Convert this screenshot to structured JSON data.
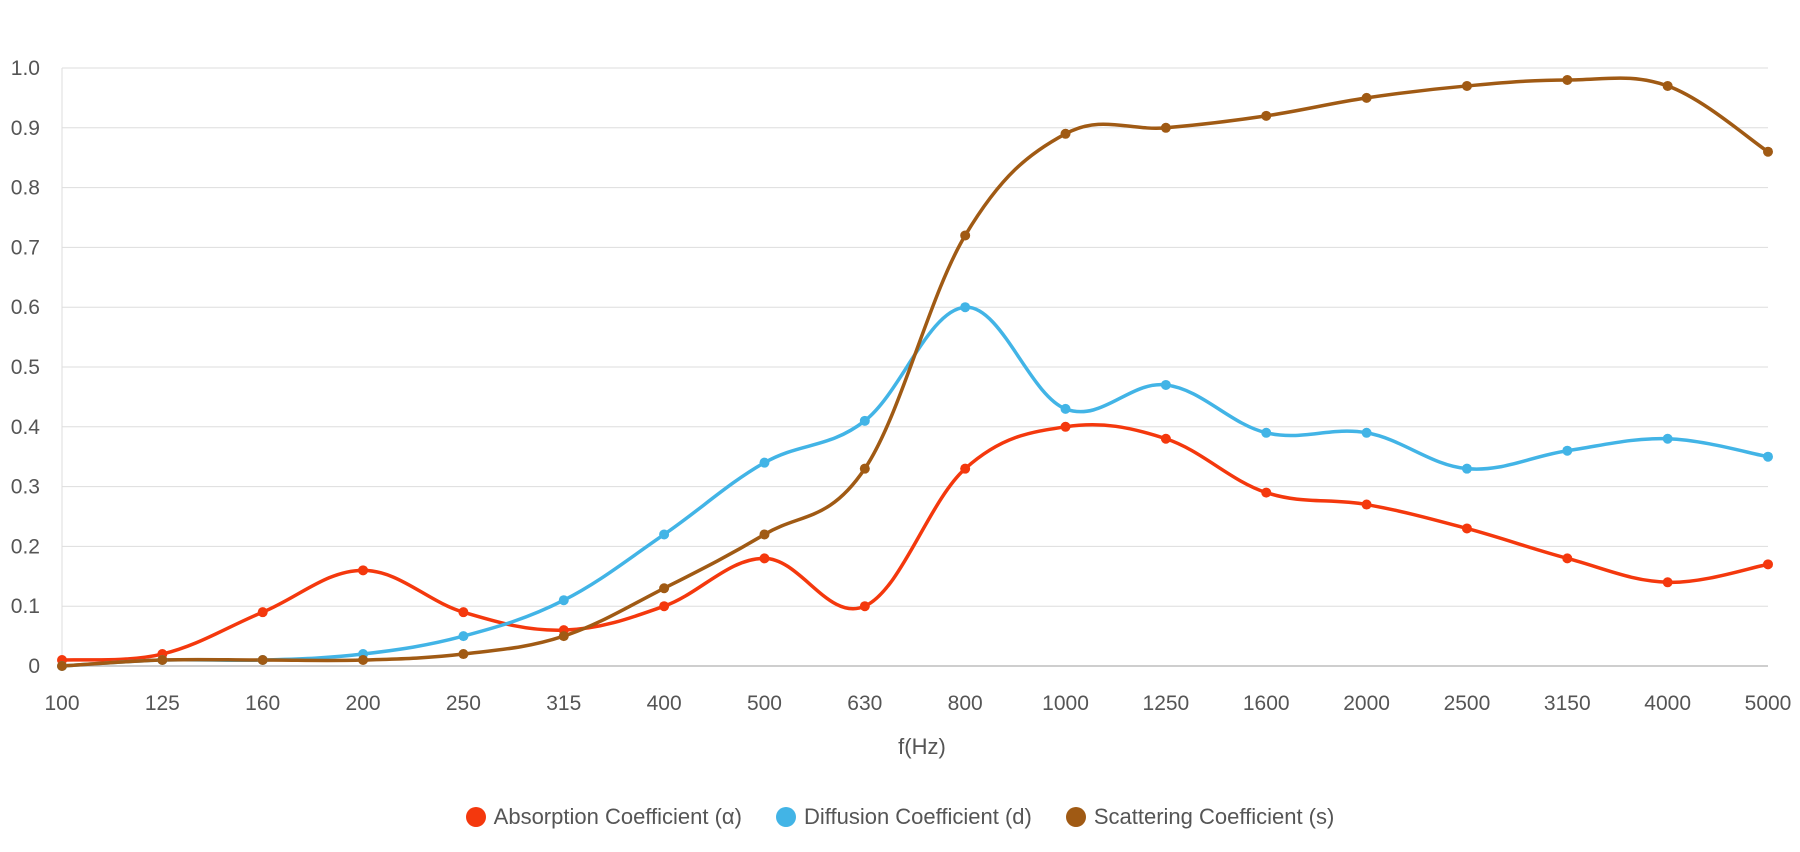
{
  "chart_data": {
    "type": "line",
    "xlabel": "f(Hz)",
    "ylabel": "",
    "ylim": [
      0,
      1.0
    ],
    "y_ticks": [
      0,
      0.1,
      0.2,
      0.3,
      0.4,
      0.5,
      0.6,
      0.7,
      0.8,
      0.9,
      1.0
    ],
    "y_tick_labels": [
      "0",
      "0.1",
      "0.2",
      "0.3",
      "0.4",
      "0.5",
      "0.6",
      "0.7",
      "0.8",
      "0.9",
      "1.0"
    ],
    "grid": true,
    "legend_position": "bottom-center",
    "categories": [
      "100",
      "125",
      "160",
      "200",
      "250",
      "315",
      "400",
      "500",
      "630",
      "800",
      "1000",
      "1250",
      "1600",
      "2000",
      "2500",
      "3150",
      "4000",
      "5000"
    ],
    "series": [
      {
        "name": "Absorption Coefficient (α)",
        "color": "#f4380d",
        "values": [
          0.01,
          0.02,
          0.09,
          0.16,
          0.09,
          0.06,
          0.1,
          0.18,
          0.1,
          0.33,
          0.4,
          0.38,
          0.29,
          0.27,
          0.23,
          0.18,
          0.14,
          0.17
        ]
      },
      {
        "name": "Diffusion Coefficient (d)",
        "color": "#42b4e6",
        "values": [
          0.0,
          0.01,
          0.01,
          0.02,
          0.05,
          0.11,
          0.22,
          0.34,
          0.41,
          0.6,
          0.43,
          0.47,
          0.39,
          0.39,
          0.33,
          0.36,
          0.38,
          0.35
        ]
      },
      {
        "name": "Scattering Coefficient (s)",
        "color": "#a05a14",
        "values": [
          0.0,
          0.01,
          0.01,
          0.01,
          0.02,
          0.05,
          0.13,
          0.22,
          0.33,
          0.72,
          0.89,
          0.9,
          0.92,
          0.95,
          0.97,
          0.98,
          0.97,
          0.86
        ]
      }
    ]
  }
}
